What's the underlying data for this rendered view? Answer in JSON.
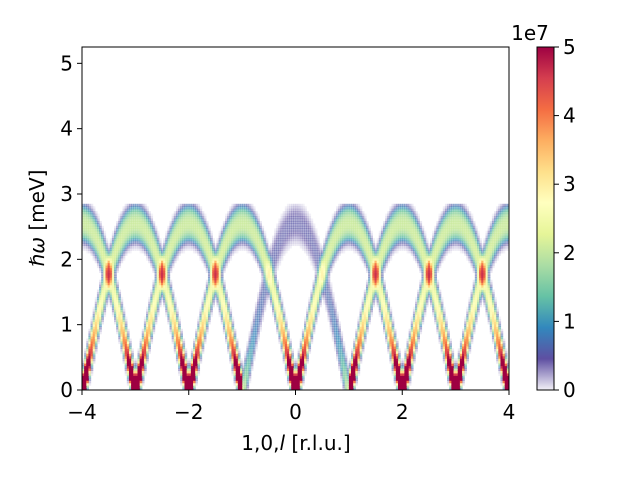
{
  "chart_data": {
    "type": "heatmap",
    "title": "",
    "xlabel_prefix": "1,0,",
    "xlabel_var": "l",
    "xlabel_suffix": " [r.l.u.]",
    "ylabel_var": "ℏω",
    "ylabel_suffix": " [meV]",
    "xlim": [
      -4,
      4
    ],
    "ylim": [
      0,
      5.25
    ],
    "xticks": [
      -4,
      -2,
      0,
      2,
      4
    ],
    "xtick_labels": [
      "−4",
      "−2",
      "0",
      "2",
      "4"
    ],
    "yticks": [
      0,
      1,
      2,
      3,
      4,
      5
    ],
    "ytick_labels": [
      "0",
      "1",
      "2",
      "3",
      "4",
      "5"
    ],
    "colorbar": {
      "label": "",
      "multiplier": "1e7",
      "range": [
        0,
        5
      ],
      "ticks": [
        0,
        1,
        2,
        3,
        4,
        5
      ],
      "tick_labels": [
        "0",
        "1",
        "2",
        "3",
        "4",
        "5"
      ],
      "colormap": "Spectral_r",
      "colors": [
        "#f2f0f7",
        "#5e4fa2",
        "#3288bd",
        "#66c2a5",
        "#abdda4",
        "#e6f598",
        "#ffffbf",
        "#fee08b",
        "#fdae61",
        "#f46d43",
        "#d53e4f",
        "#9e0142"
      ]
    },
    "dispersion": {
      "min_energy_meV": 0.0,
      "max_energy_meV": 2.6,
      "period_rlu": 2,
      "minima_l": [
        -3,
        -1,
        1,
        3
      ],
      "weak_branch_minima_l": [
        -1,
        1
      ],
      "weak_region_l": [
        -1,
        1
      ]
    },
    "grid": false
  }
}
